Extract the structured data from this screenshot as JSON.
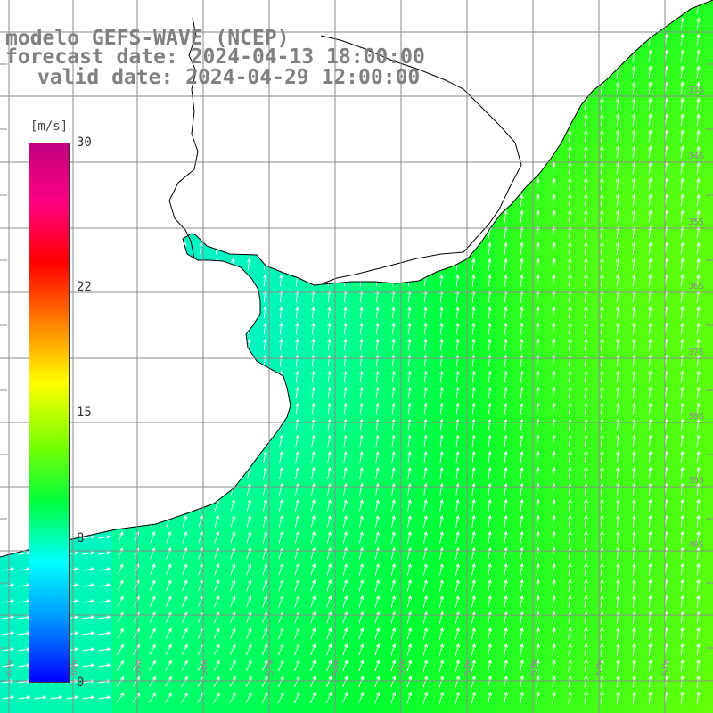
{
  "title": {
    "line1": "modelo GEFS-WAVE (NCEP)",
    "line2": "forecast date: 2024-04-13 18:00:00",
    "line3": "valid date: 2024-04-29 12:00:00"
  },
  "colorbar": {
    "unit": "[m/s]",
    "min": 0,
    "max": 30,
    "ticks": [
      "30",
      "22",
      "15",
      "8",
      "0"
    ],
    "tick_values": [
      30,
      22,
      15,
      8,
      0
    ],
    "colors": [
      "#0000ff",
      "#0090ff",
      "#00ffff",
      "#00ff40",
      "#80ff00",
      "#ffff00",
      "#ff8000",
      "#ff0000",
      "#ff0080",
      "#c00080"
    ]
  },
  "map": {
    "field": "wind speed",
    "land_color": "#ffffff",
    "grid_color": "#8a8a8a",
    "coast_color": "#000000",
    "arrow_color": "#ffffff",
    "lat_labels": [
      "33S",
      "34S",
      "35S",
      "36S",
      "37S",
      "38S",
      "39S",
      "40S"
    ],
    "lon_labels": [
      "61W",
      "60W",
      "59W",
      "58W",
      "57W",
      "56W",
      "55W",
      "54W",
      "53W",
      "52W",
      "51W"
    ]
  }
}
